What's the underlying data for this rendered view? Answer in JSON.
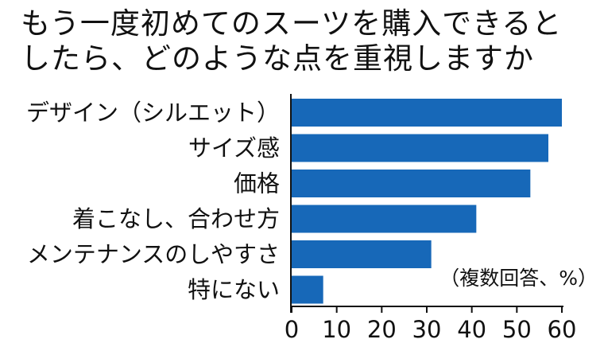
{
  "title_lines": [
    "もう一度初めてのスーツを購入できると",
    "したら、どのような点を重視しますか"
  ],
  "note": "（複数回答、%）",
  "colors": {
    "bar": "#1768b8",
    "axis": "#111111"
  },
  "chart_data": {
    "type": "bar",
    "orientation": "horizontal",
    "title": "もう一度初めてのスーツを購入できるとしたら、どのような点を重視しますか",
    "categories": [
      "デザイン（シルエット）",
      "サイズ感",
      "価格",
      "着こなし、合わせ方",
      "メンテナンスのしやすさ",
      "特にない"
    ],
    "values": [
      60,
      57,
      53,
      41,
      31,
      7
    ],
    "unit": "%",
    "xlim": [
      0,
      60
    ],
    "ticks": [
      0,
      10,
      20,
      30,
      40,
      50,
      60
    ],
    "grid": false,
    "legend": "none"
  }
}
